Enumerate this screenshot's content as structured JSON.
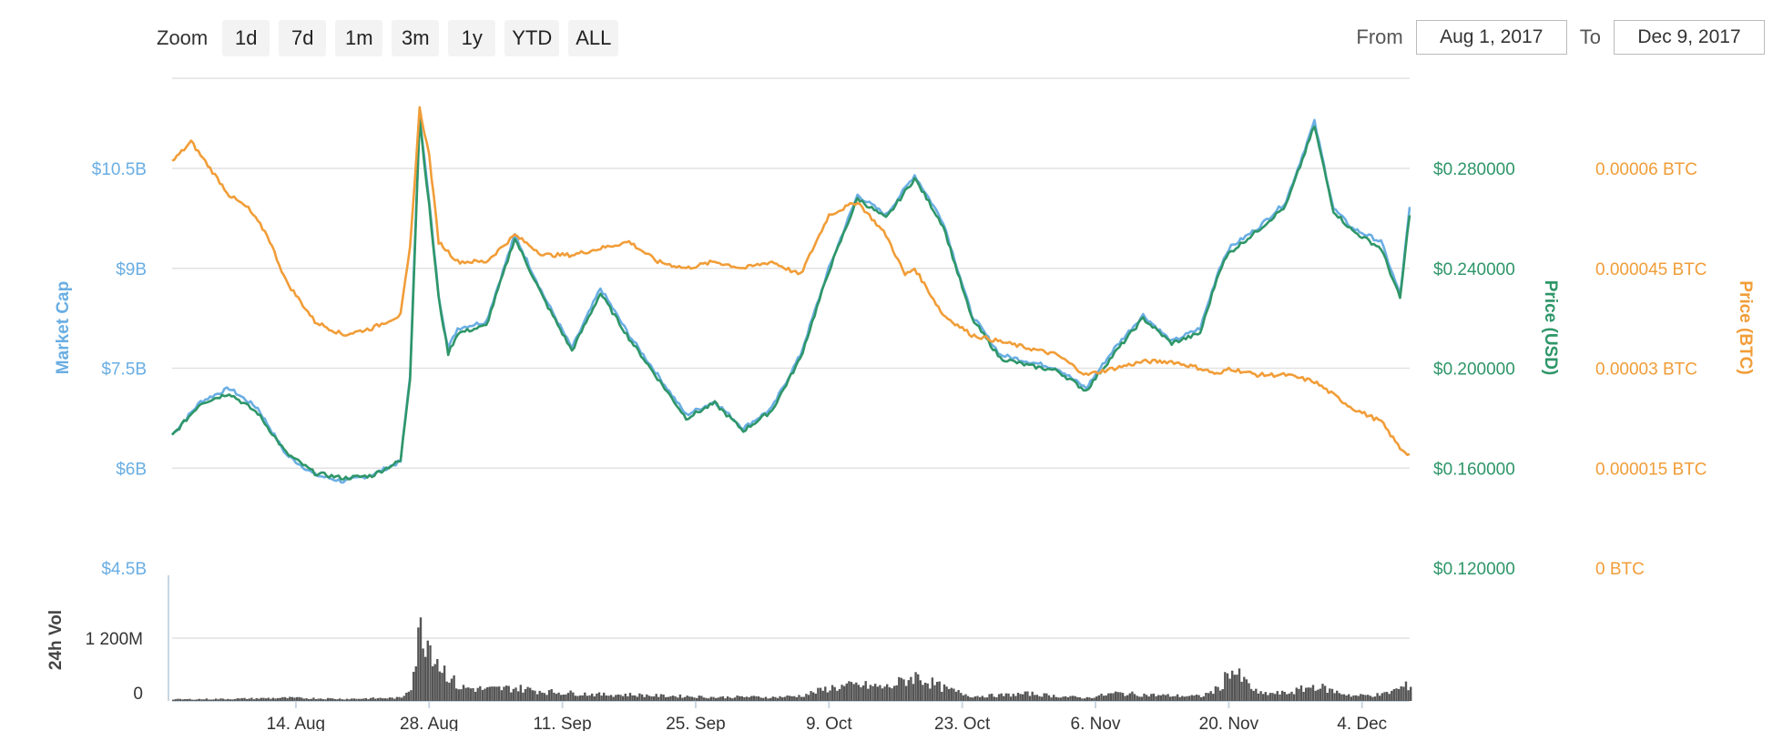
{
  "zoom": {
    "label": "Zoom",
    "buttons": [
      "1d",
      "7d",
      "1m",
      "3m",
      "1y",
      "YTD",
      "ALL"
    ]
  },
  "range": {
    "from_label": "From",
    "from_value": "Aug 1, 2017",
    "to_label": "To",
    "to_value": "Dec 9, 2017"
  },
  "colors": {
    "market_cap": "#6aaee3",
    "price_usd": "#2e9668",
    "price_btc": "#f19d38",
    "volume": "#555555",
    "grid": "#e2e2e2"
  },
  "chart_data": {
    "type": "line",
    "x_ticks": [
      "14. Aug",
      "28. Aug",
      "11. Sep",
      "25. Sep",
      "9. Oct",
      "23. Oct",
      "6. Nov",
      "20. Nov",
      "4. Dec"
    ],
    "x_tick_days": [
      13,
      27,
      41,
      55,
      69,
      83,
      97,
      111,
      125
    ],
    "x_range_days": [
      0,
      130
    ],
    "axes": {
      "market_cap": {
        "label": "Market Cap",
        "ticks": [
          "$4.5B",
          "$6B",
          "$7.5B",
          "$9B",
          "$10.5B"
        ],
        "range": [
          4.5,
          10.5
        ]
      },
      "price_usd": {
        "label": "Price (USD)",
        "ticks": [
          "$0.120000",
          "$0.160000",
          "$0.200000",
          "$0.240000",
          "$0.280000"
        ],
        "range": [
          0.12,
          0.28
        ]
      },
      "price_btc": {
        "label": "Price (BTC)",
        "ticks": [
          "0 BTC",
          "0.000015 BTC",
          "0.00003 BTC",
          "0.000045 BTC",
          "0.00006 BTC"
        ],
        "range": [
          0,
          6e-05
        ]
      },
      "volume": {
        "label": "24h Vol",
        "ticks": [
          "0",
          "1 200M"
        ],
        "range": [
          0,
          1200
        ]
      }
    },
    "series": [
      {
        "name": "Market Cap",
        "unit": "B USD",
        "x": [
          0,
          3,
          6,
          9,
          12,
          15,
          18,
          21,
          24,
          25,
          26,
          27,
          28,
          29,
          30,
          33,
          36,
          39,
          42,
          45,
          48,
          51,
          54,
          57,
          60,
          63,
          66,
          69,
          72,
          75,
          78,
          81,
          84,
          87,
          90,
          93,
          96,
          99,
          102,
          105,
          108,
          110,
          111,
          114,
          117,
          120,
          122,
          124,
          127,
          129,
          130
        ],
        "values": [
          6.5,
          7.0,
          7.2,
          6.9,
          6.2,
          5.9,
          5.8,
          5.9,
          6.1,
          7.4,
          11.3,
          10.0,
          8.6,
          7.8,
          8.1,
          8.2,
          9.5,
          8.6,
          7.8,
          8.7,
          8.0,
          7.4,
          6.8,
          7.0,
          6.6,
          6.9,
          7.7,
          9.0,
          10.1,
          9.8,
          10.4,
          9.7,
          8.3,
          7.7,
          7.6,
          7.5,
          7.2,
          7.8,
          8.3,
          7.9,
          8.1,
          9.0,
          9.3,
          9.6,
          10.0,
          11.2,
          9.9,
          9.6,
          9.4,
          8.6,
          9.9
        ]
      },
      {
        "name": "Price (USD)",
        "unit": "USD",
        "x": [
          0,
          3,
          6,
          9,
          12,
          15,
          18,
          21,
          24,
          25,
          26,
          27,
          28,
          29,
          30,
          33,
          36,
          39,
          42,
          45,
          48,
          51,
          54,
          57,
          60,
          63,
          66,
          69,
          72,
          75,
          78,
          81,
          84,
          87,
          90,
          93,
          96,
          99,
          102,
          105,
          108,
          110,
          111,
          114,
          117,
          120,
          122,
          124,
          127,
          129,
          130
        ],
        "values": [
          0.173,
          0.186,
          0.19,
          0.182,
          0.166,
          0.158,
          0.156,
          0.157,
          0.163,
          0.196,
          0.3,
          0.265,
          0.228,
          0.206,
          0.214,
          0.217,
          0.252,
          0.228,
          0.207,
          0.23,
          0.212,
          0.196,
          0.18,
          0.186,
          0.175,
          0.183,
          0.204,
          0.239,
          0.268,
          0.26,
          0.276,
          0.257,
          0.22,
          0.204,
          0.201,
          0.199,
          0.191,
          0.206,
          0.22,
          0.21,
          0.214,
          0.239,
          0.246,
          0.255,
          0.265,
          0.297,
          0.263,
          0.255,
          0.248,
          0.228,
          0.262
        ]
      },
      {
        "name": "Price (BTC)",
        "unit": "BTC",
        "x": [
          0,
          2,
          4,
          6,
          8,
          10,
          12,
          15,
          18,
          21,
          24,
          25,
          26,
          27,
          28,
          30,
          33,
          36,
          39,
          42,
          45,
          48,
          51,
          54,
          57,
          60,
          63,
          66,
          69,
          72,
          75,
          77,
          78,
          81,
          84,
          87,
          90,
          93,
          96,
          99,
          102,
          105,
          108,
          110,
          111,
          114,
          117,
          120,
          122,
          124,
          127,
          129,
          130
        ],
        "values": [
          6.1e-05,
          6.4e-05,
          6e-05,
          5.6e-05,
          5.4e-05,
          5e-05,
          4.3e-05,
          3.7e-05,
          3.5e-05,
          3.6e-05,
          3.8e-05,
          4.8e-05,
          6.9e-05,
          6.2e-05,
          4.9e-05,
          4.6e-05,
          4.6e-05,
          5e-05,
          4.7e-05,
          4.7e-05,
          4.8e-05,
          4.9e-05,
          4.6e-05,
          4.5e-05,
          4.6e-05,
          4.5e-05,
          4.6e-05,
          4.4e-05,
          5.3e-05,
          5.5e-05,
          5e-05,
          4.4e-05,
          4.5e-05,
          3.8e-05,
          3.5e-05,
          3.4e-05,
          3.3e-05,
          3.2e-05,
          2.9e-05,
          3e-05,
          3.1e-05,
          3.1e-05,
          3e-05,
          2.9e-05,
          3e-05,
          2.9e-05,
          2.9e-05,
          2.8e-05,
          2.6e-05,
          2.4e-05,
          2.2e-05,
          1.8e-05,
          1.7e-05
        ]
      },
      {
        "name": "24h Vol",
        "unit": "M USD",
        "x": [
          0,
          6,
          12,
          18,
          24,
          25,
          26,
          27,
          28,
          30,
          33,
          36,
          39,
          42,
          45,
          48,
          51,
          54,
          57,
          60,
          63,
          66,
          69,
          72,
          75,
          78,
          81,
          84,
          87,
          90,
          93,
          96,
          99,
          102,
          105,
          108,
          110,
          111,
          114,
          117,
          120,
          122,
          124,
          127,
          129,
          130
        ],
        "values": [
          30,
          40,
          60,
          40,
          60,
          300,
          1400,
          1100,
          700,
          260,
          220,
          250,
          180,
          150,
          120,
          120,
          100,
          90,
          70,
          80,
          70,
          100,
          250,
          300,
          260,
          470,
          240,
          90,
          110,
          140,
          90,
          60,
          150,
          120,
          100,
          90,
          250,
          620,
          140,
          150,
          290,
          180,
          100,
          120,
          250,
          310
        ]
      }
    ]
  }
}
